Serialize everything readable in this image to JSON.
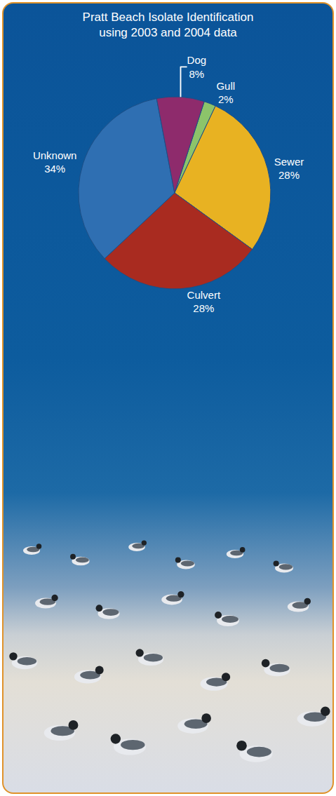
{
  "chart_data": {
    "type": "pie",
    "title": "Pratt Beach Isolate Identification\nusing 2003 and 2004 data",
    "categories": [
      "Gull",
      "Sewer",
      "Culvert",
      "Unknown",
      "Dog"
    ],
    "values": [
      2,
      28,
      28,
      34,
      8
    ],
    "value_labels": [
      "2%",
      "28%",
      "28%",
      "34%",
      "8%"
    ],
    "colors": [
      "#8cc46a",
      "#e8b222",
      "#a92b20",
      "#2f6fb2",
      "#8e2b6c"
    ],
    "data_labels": true
  }
}
